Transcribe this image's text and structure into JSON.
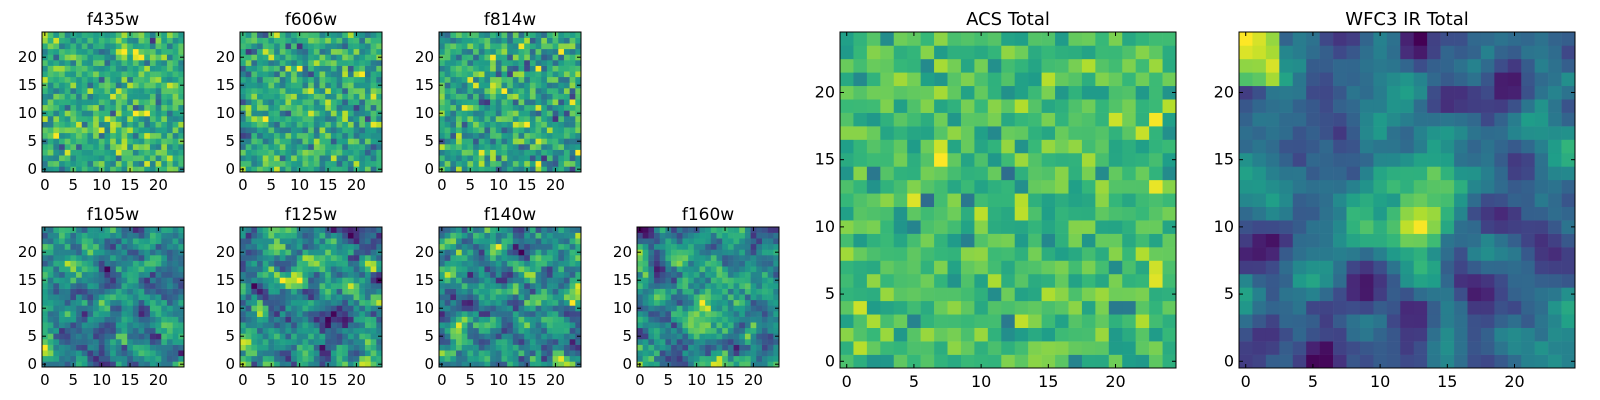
{
  "chart_data": [
    {
      "type": "heatmap",
      "title": "f435w",
      "xticks": [
        0,
        5,
        10,
        15,
        20
      ],
      "yticks": [
        0,
        5,
        10,
        15,
        20
      ],
      "xlim": [
        0,
        25
      ],
      "ylim": [
        0,
        25
      ],
      "grid_size": 25,
      "colormap": "viridis",
      "pattern": "noise",
      "seed": 11
    },
    {
      "type": "heatmap",
      "title": "f606w",
      "xticks": [
        0,
        5,
        10,
        15,
        20
      ],
      "yticks": [
        0,
        5,
        10,
        15,
        20
      ],
      "xlim": [
        0,
        25
      ],
      "ylim": [
        0,
        25
      ],
      "grid_size": 25,
      "colormap": "viridis",
      "pattern": "noise",
      "seed": 23
    },
    {
      "type": "heatmap",
      "title": "f814w",
      "xticks": [
        0,
        5,
        10,
        15,
        20
      ],
      "yticks": [
        0,
        5,
        10,
        15,
        20
      ],
      "xlim": [
        0,
        25
      ],
      "ylim": [
        0,
        25
      ],
      "grid_size": 25,
      "colormap": "viridis",
      "pattern": "noise",
      "seed": 37
    },
    {
      "type": "heatmap",
      "title": "f105w",
      "xticks": [
        0,
        5,
        10,
        15,
        20
      ],
      "yticks": [
        0,
        5,
        10,
        15,
        20
      ],
      "xlim": [
        0,
        25
      ],
      "ylim": [
        0,
        25
      ],
      "grid_size": 25,
      "colormap": "viridis",
      "pattern": "smooth",
      "seed": 41
    },
    {
      "type": "heatmap",
      "title": "f125w",
      "xticks": [
        0,
        5,
        10,
        15,
        20
      ],
      "yticks": [
        0,
        5,
        10,
        15,
        20
      ],
      "xlim": [
        0,
        25
      ],
      "ylim": [
        0,
        25
      ],
      "grid_size": 25,
      "colormap": "viridis",
      "pattern": "smooth",
      "seed": 53
    },
    {
      "type": "heatmap",
      "title": "f140w",
      "xticks": [
        0,
        5,
        10,
        15,
        20
      ],
      "yticks": [
        0,
        5,
        10,
        15,
        20
      ],
      "xlim": [
        0,
        25
      ],
      "ylim": [
        0,
        25
      ],
      "grid_size": 25,
      "colormap": "viridis",
      "pattern": "smooth",
      "seed": 67
    },
    {
      "type": "heatmap",
      "title": "f160w",
      "xticks": [
        0,
        5,
        10,
        15,
        20
      ],
      "yticks": [
        0,
        5,
        10,
        15,
        20
      ],
      "xlim": [
        0,
        25
      ],
      "ylim": [
        0,
        25
      ],
      "grid_size": 25,
      "colormap": "viridis",
      "pattern": "smooth-center",
      "seed": 79
    },
    {
      "type": "heatmap",
      "title": "ACS Total",
      "xticks": [
        0,
        5,
        10,
        15,
        20
      ],
      "yticks": [
        0,
        5,
        10,
        15,
        20
      ],
      "xlim": [
        0,
        25
      ],
      "ylim": [
        0,
        25
      ],
      "grid_size": 25,
      "colormap": "viridis",
      "pattern": "noise-high",
      "seed": 97
    },
    {
      "type": "heatmap",
      "title": "WFC3 IR Total",
      "xticks": [
        0,
        5,
        10,
        15,
        20
      ],
      "yticks": [
        0,
        5,
        10,
        15,
        20
      ],
      "xlim": [
        0,
        25
      ],
      "ylim": [
        0,
        25
      ],
      "grid_size": 25,
      "colormap": "viridis",
      "pattern": "center-blob",
      "seed": 113
    }
  ]
}
